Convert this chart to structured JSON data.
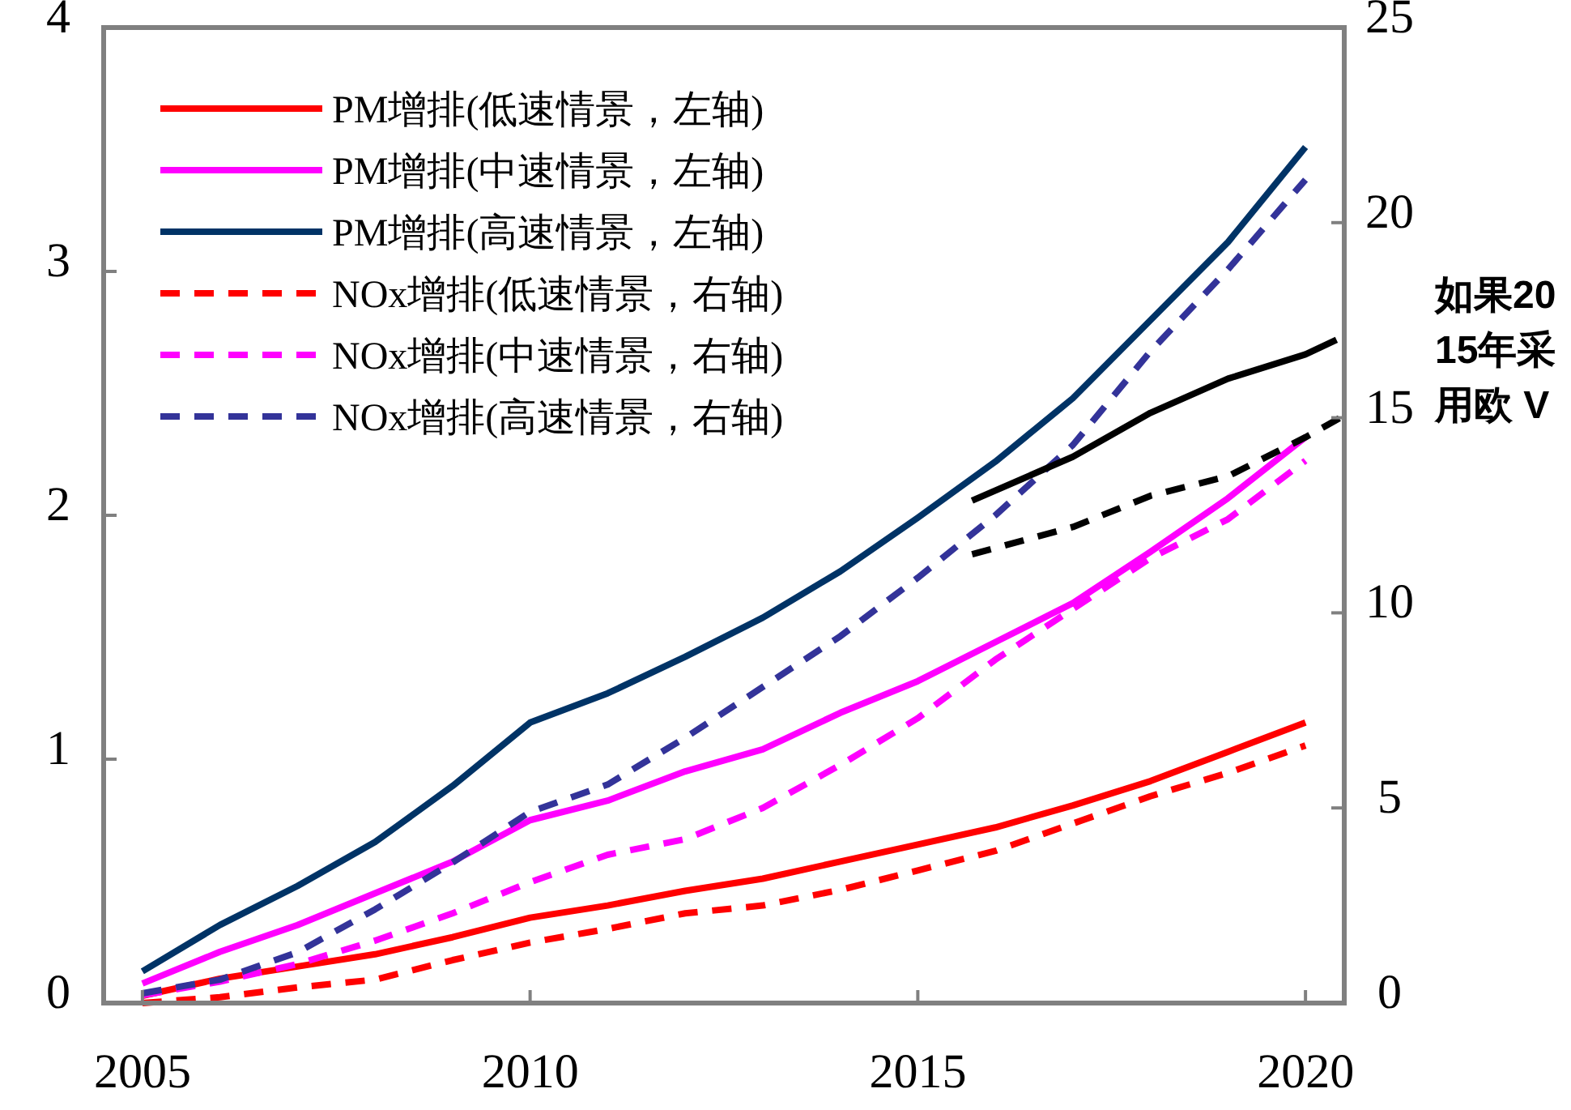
{
  "chart_data": {
    "type": "line",
    "x": [
      2005,
      2006,
      2007,
      2008,
      2009,
      2010,
      2011,
      2012,
      2013,
      2014,
      2015,
      2016,
      2017,
      2018,
      2019,
      2020
    ],
    "xlim": [
      2004.5,
      2020.5
    ],
    "xticks": [
      2005,
      2010,
      2015,
      2020
    ],
    "ylim": [
      0,
      4
    ],
    "yticks": [
      0,
      1,
      2,
      3,
      4
    ],
    "y2lim": [
      0,
      25
    ],
    "y2ticks": [
      0,
      5,
      10,
      15,
      20,
      25
    ],
    "grid": false,
    "legend": "top left",
    "marker": "none",
    "annotations": [
      "如果2015年采用欧 V"
    ],
    "series": [
      {
        "name": "PM增排(低速情景，左轴)",
        "color": "#ff0000",
        "line_style": "solid",
        "values": [
          0.03,
          0.1,
          0.15,
          0.2,
          0.27,
          0.35,
          0.4,
          0.46,
          0.51,
          0.58,
          0.65,
          0.72,
          0.81,
          0.91,
          1.03,
          1.15
        ]
      },
      {
        "name": "PM增排(中速情景，左轴)",
        "color": "#ff00ff",
        "line_style": "solid",
        "values": [
          0.08,
          0.21,
          0.32,
          0.45,
          0.58,
          0.75,
          0.83,
          0.95,
          1.04,
          1.19,
          1.32,
          1.48,
          1.64,
          1.85,
          2.07,
          2.32
        ]
      },
      {
        "name": "PM增排(高速情景，左轴)",
        "color": "#003366",
        "line_style": "solid",
        "values": [
          0.13,
          0.32,
          0.48,
          0.66,
          0.89,
          1.15,
          1.27,
          1.42,
          1.58,
          1.77,
          1.99,
          2.22,
          2.48,
          2.8,
          3.12,
          3.51
        ]
      },
      {
        "name": "NOx增排(低速情景，右轴)",
        "color": "#ff0000",
        "line_style": "dashed",
        "axis": "y2",
        "values": [
          0,
          0.15,
          0.4,
          0.6,
          1.1,
          1.55,
          1.9,
          2.3,
          2.5,
          2.9,
          3.4,
          3.9,
          4.6,
          5.3,
          5.9,
          6.6
        ]
      },
      {
        "name": "NOx增排(中速情景，右轴)",
        "color": "#ff00ff",
        "line_style": "dashed",
        "axis": "y2",
        "values": [
          0.2,
          0.55,
          1.0,
          1.6,
          2.3,
          3.1,
          3.8,
          4.2,
          5.0,
          6.1,
          7.3,
          8.8,
          10.1,
          11.4,
          12.4,
          13.9
        ]
      },
      {
        "name": "NOx增排(高速情景，右轴)",
        "color": "#333399",
        "line_style": "dashed",
        "axis": "y2",
        "values": [
          0.25,
          0.6,
          1.3,
          2.4,
          3.6,
          4.9,
          5.6,
          6.8,
          8.1,
          9.4,
          10.9,
          12.5,
          14.3,
          16.7,
          18.8,
          21.1
        ]
      },
      {
        "color": "#000000",
        "line_style": "solid",
        "x": [
          2015.7,
          2017,
          2018,
          2019,
          2020,
          2020.4
        ],
        "values": [
          2.06,
          2.24,
          2.42,
          2.56,
          2.66,
          2.72
        ]
      },
      {
        "color": "#000000",
        "line_style": "dashed",
        "axis": "y2",
        "x": [
          2015.7,
          2017,
          2018,
          2019,
          2020,
          2020.45
        ],
        "values": [
          11.5,
          12.2,
          13.0,
          13.5,
          14.5,
          15.0
        ]
      }
    ]
  }
}
